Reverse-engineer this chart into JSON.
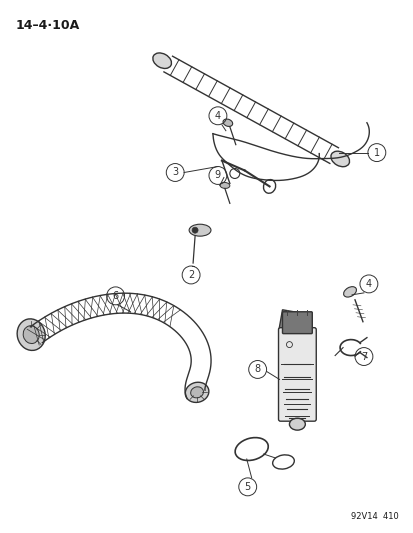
{
  "title": "14–4·10A",
  "diagram_ref": "92V14  410",
  "background": "#ffffff",
  "text_color": "#1a1a1a",
  "line_color": "#333333",
  "figsize": [
    4.14,
    5.33
  ],
  "dpi": 100
}
